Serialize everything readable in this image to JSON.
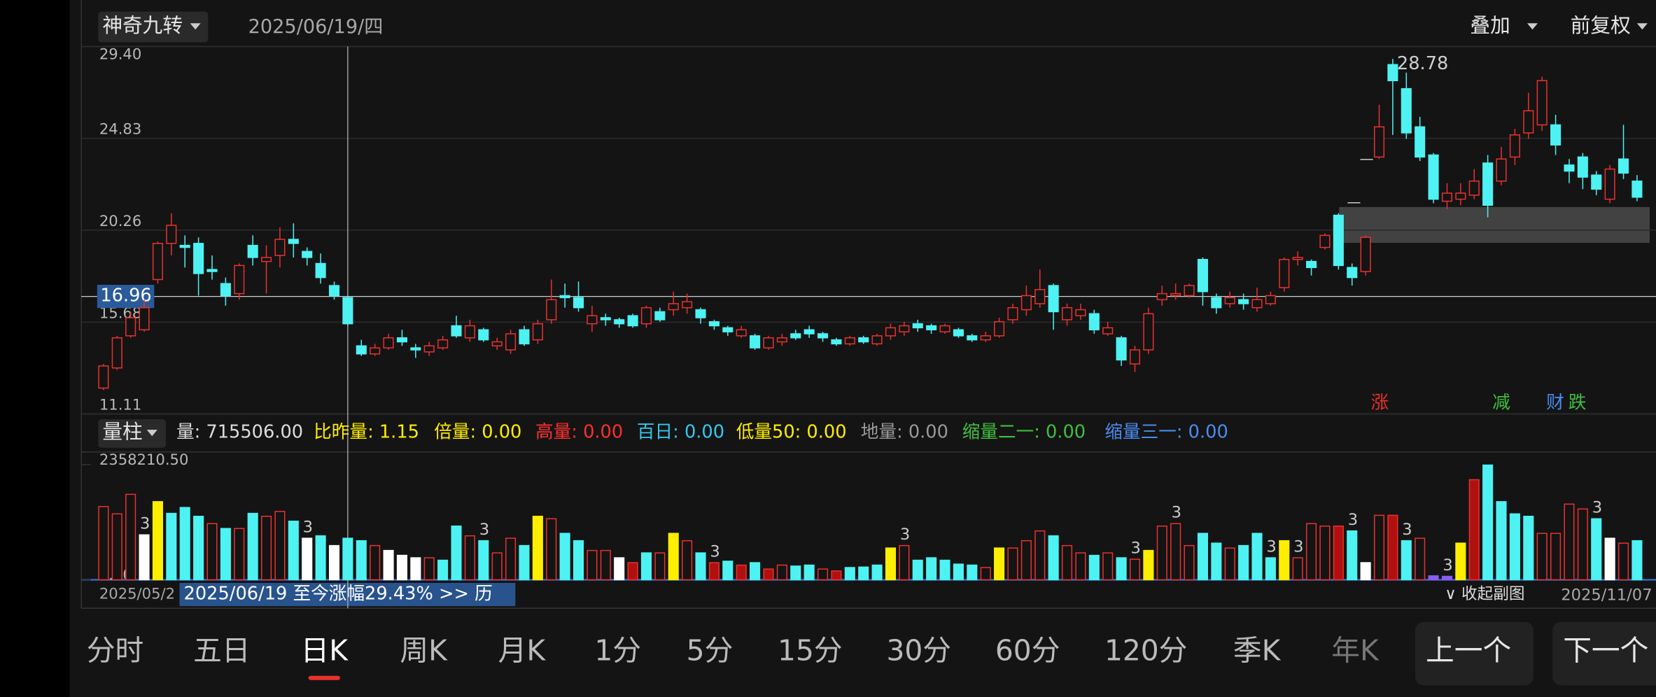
{
  "top_bar": {
    "indicator": "神奇九转",
    "date": "2025/06/19/四",
    "overlay": "叠加",
    "adjust": "前复权"
  },
  "chart_data": [
    {
      "type": "candlestick",
      "up_color": "#e8322f",
      "down_color": "#4ef2f2",
      "ylim": [
        11.11,
        29.4
      ],
      "yticks": [
        {
          "value": 29.4,
          "label": "29.40"
        },
        24.83,
        20.26,
        15.68,
        11.11
      ],
      "grid": true,
      "crosshair": 16.96,
      "open": [
        12.4,
        13.4,
        15.0,
        15.3,
        17.8,
        19.6,
        19.5,
        19.6,
        18.3,
        17.6,
        17.1,
        19.5,
        18.7,
        19.0,
        19.8,
        19.2,
        18.6,
        17.5,
        16.9,
        14.5,
        14.1,
        14.4,
        14.9,
        14.4,
        14.2,
        14.4,
        15.5,
        14.9,
        15.3,
        14.5,
        14.3,
        15.3,
        14.8,
        15.8,
        17.0,
        16.9,
        15.6,
        15.9,
        15.8,
        16.0,
        15.6,
        16.2,
        16.3,
        16.4,
        16.3,
        15.7,
        15.4,
        15.0,
        15.0,
        14.4,
        14.7,
        15.1,
        15.3,
        15.1,
        14.8,
        14.6,
        14.9,
        14.6,
        15.0,
        15.2,
        15.6,
        15.5,
        15.2,
        15.3,
        15.0,
        14.8,
        15.0,
        15.8,
        16.3,
        16.6,
        17.5,
        15.8,
        16.0,
        16.1,
        15.1,
        14.9,
        13.6,
        14.3,
        16.8,
        17.0,
        17.0,
        18.8,
        16.9,
        16.6,
        16.8,
        16.4,
        16.6,
        17.4,
        18.8,
        18.7,
        19.4,
        21.0,
        18.4,
        18.2,
        23.9,
        28.5,
        27.3,
        25.4,
        24.0,
        21.7,
        21.8,
        22.0,
        23.6,
        22.7,
        23.9,
        25.1,
        25.5,
        25.5,
        23.5,
        23.9,
        23.0,
        21.8,
        23.8,
        22.7
      ],
      "high": [
        13.6,
        15.0,
        16.2,
        16.8,
        19.7,
        21.1,
        20.0,
        19.9,
        19.0,
        17.9,
        18.6,
        20.0,
        19.5,
        20.4,
        20.6,
        19.4,
        19.1,
        17.7,
        16.9,
        14.8,
        14.6,
        15.1,
        15.3,
        14.6,
        14.7,
        15.0,
        16.0,
        15.8,
        15.4,
        14.9,
        15.3,
        15.5,
        15.8,
        17.8,
        17.6,
        17.7,
        16.5,
        16.1,
        15.9,
        16.1,
        16.5,
        16.4,
        17.2,
        17.1,
        16.4,
        15.8,
        15.5,
        15.5,
        15.1,
        15.0,
        15.1,
        15.3,
        15.5,
        15.2,
        14.9,
        15.0,
        15.0,
        15.1,
        15.6,
        15.7,
        15.8,
        15.6,
        15.6,
        15.4,
        15.1,
        15.2,
        15.9,
        16.6,
        17.5,
        18.3,
        17.6,
        16.6,
        16.6,
        16.3,
        15.7,
        15.0,
        14.5,
        16.4,
        17.5,
        17.6,
        17.6,
        18.9,
        17.1,
        17.2,
        17.1,
        17.4,
        17.2,
        18.9,
        19.2,
        18.8,
        20.1,
        21.1,
        18.6,
        20.0,
        26.5,
        28.78,
        28.1,
        25.9,
        24.1,
        22.6,
        22.6,
        23.3,
        24.0,
        24.4,
        25.3,
        27.1,
        27.9,
        26.0,
        23.8,
        24.1,
        23.2,
        23.5,
        25.5,
        23.0
      ],
      "low": [
        12.3,
        13.3,
        14.9,
        15.2,
        17.6,
        19.0,
        18.4,
        17.0,
        17.8,
        16.5,
        16.8,
        18.5,
        17.1,
        18.4,
        18.9,
        18.5,
        17.6,
        16.8,
        15.5,
        14.0,
        14.0,
        14.3,
        14.5,
        13.9,
        14.0,
        14.3,
        14.9,
        14.7,
        14.7,
        14.3,
        14.1,
        14.5,
        14.6,
        15.6,
        16.4,
        16.2,
        15.2,
        15.5,
        15.4,
        15.4,
        15.4,
        15.7,
        16.0,
        16.1,
        15.6,
        15.3,
        15.0,
        14.9,
        14.3,
        14.3,
        14.5,
        14.8,
        14.9,
        14.7,
        14.5,
        14.5,
        14.6,
        14.5,
        14.8,
        15.0,
        15.2,
        15.1,
        15.1,
        14.9,
        14.7,
        14.7,
        14.9,
        15.6,
        16.0,
        16.4,
        15.3,
        15.5,
        15.8,
        15.1,
        15.0,
        13.5,
        13.2,
        14.1,
        16.5,
        16.8,
        16.9,
        16.5,
        16.1,
        16.4,
        16.3,
        16.2,
        16.5,
        17.2,
        18.5,
        18.0,
        19.3,
        18.3,
        17.5,
        18.0,
        23.8,
        25.0,
        24.8,
        23.7,
        21.6,
        21.3,
        21.5,
        21.8,
        20.9,
        22.5,
        23.5,
        24.8,
        25.2,
        24.0,
        22.6,
        22.3,
        22.0,
        21.6,
        22.8,
        21.7
      ],
      "close": [
        13.5,
        14.9,
        15.9,
        16.4,
        19.6,
        20.5,
        19.4,
        18.1,
        18.2,
        17.0,
        18.5,
        18.9,
        18.9,
        19.8,
        19.6,
        18.9,
        17.9,
        17.0,
        15.6,
        14.1,
        14.4,
        14.9,
        14.7,
        14.3,
        14.5,
        14.8,
        15.0,
        15.5,
        14.8,
        14.7,
        15.1,
        14.6,
        15.6,
        16.8,
        16.9,
        16.4,
        16.0,
        15.8,
        15.6,
        15.5,
        16.4,
        15.8,
        16.6,
        16.7,
        15.9,
        15.5,
        15.2,
        15.3,
        14.4,
        14.9,
        14.9,
        14.9,
        15.1,
        14.9,
        14.6,
        14.9,
        14.7,
        15.0,
        15.4,
        15.5,
        15.4,
        15.3,
        15.5,
        15.0,
        14.8,
        15.0,
        15.7,
        16.4,
        17.0,
        17.3,
        16.2,
        16.4,
        16.3,
        15.3,
        15.4,
        13.8,
        14.3,
        16.1,
        17.1,
        17.1,
        17.5,
        17.2,
        16.4,
        16.9,
        16.6,
        16.8,
        17.0,
        18.8,
        18.9,
        18.4,
        20.0,
        18.5,
        17.9,
        19.9,
        25.4,
        27.7,
        25.1,
        23.9,
        21.8,
        22.1,
        22.1,
        22.7,
        21.5,
        23.8,
        25.0,
        26.2,
        27.7,
        24.5,
        23.2,
        22.9,
        22.3,
        23.3,
        23.1,
        21.9
      ],
      "events": [
        {
          "text": "涨",
          "color": "#e8322f"
        },
        {
          "text": "减",
          "color": "#3fbf3f"
        },
        {
          "text": "财",
          "color": "#4a8cf0"
        },
        {
          "text": "跌",
          "color": "#3fbf3f"
        }
      ]
    },
    {
      "type": "bar",
      "name": "量柱",
      "hollow_color": "#e8322f",
      "ylim": [
        0,
        2358210.5
      ],
      "yticks": [
        {
          "value": 2358210.5,
          "label": "2358210.50"
        },
        {
          "value": 0,
          "label": "0.00"
        }
      ],
      "stats": [
        {
          "text": "量: 715506.00",
          "color": "#dddddd"
        },
        {
          "text": "比昨量: 1.15",
          "color": "#ffee00"
        },
        {
          "text": "倍量: 0.00",
          "color": "#ffee00"
        },
        {
          "text": "高量: 0.00",
          "color": "#ff3030"
        },
        {
          "text": "百日: 0.00",
          "color": "#33c8f0"
        },
        {
          "text": "低量50: 0.00",
          "color": "#ffee00"
        },
        {
          "text": "地量: 0.00",
          "color": "#999999"
        },
        {
          "text": "缩量二一: 0.00",
          "color": "#3fbf3f"
        },
        {
          "text": "缩量三一: 0.00",
          "color": "#4a8cf0"
        }
      ],
      "values": [
        1500000,
        1350000,
        1750000,
        920000,
        1600000,
        1360000,
        1480000,
        1300000,
        1150000,
        1050000,
        1050000,
        1360000,
        1300000,
        1400000,
        1200000,
        850000,
        900000,
        700000,
        850000,
        800000,
        700000,
        600000,
        500000,
        450000,
        450000,
        400000,
        1100000,
        900000,
        800000,
        550000,
        850000,
        700000,
        1300000,
        1250000,
        950000,
        800000,
        600000,
        600000,
        450000,
        350000,
        550000,
        550000,
        950000,
        800000,
        550000,
        350000,
        380000,
        300000,
        350000,
        220000,
        300000,
        280000,
        300000,
        220000,
        180000,
        250000,
        260000,
        300000,
        650000,
        700000,
        400000,
        450000,
        400000,
        320000,
        300000,
        250000,
        650000,
        650000,
        800000,
        1000000,
        900000,
        700000,
        550000,
        500000,
        550000,
        450000,
        420000,
        600000,
        1100000,
        1150000,
        700000,
        950000,
        750000,
        650000,
        700000,
        950000,
        450000,
        800000,
        450000,
        1150000,
        1100000,
        1100000,
        1000000,
        350000,
        1320000,
        1320000,
        800000,
        850000,
        80000,
        70000,
        750000,
        2050000,
        2350000,
        1600000,
        1350000,
        1300000,
        950000,
        950000,
        1550000,
        1450000,
        1250000,
        850000,
        750000,
        800000
      ],
      "colors": [
        "#e8322f",
        "#e8322f",
        "#e8322f",
        "#ffffff",
        "#ffee00",
        "#4ef2f2",
        "#4ef2f2",
        "#4ef2f2",
        "#e8322f",
        "#4ef2f2",
        "#e8322f",
        "#4ef2f2",
        "#e8322f",
        "#e8322f",
        "#4ef2f2",
        "#ffffff",
        "#4ef2f2",
        "#ffffff",
        "#4ef2f2",
        "#4ef2f2",
        "#e8322f",
        "#ffffff",
        "#ffffff",
        "#ffffff",
        "#e8322f",
        "#4ef2f2",
        "#4ef2f2",
        "#e8322f",
        "#4ef2f2",
        "#e8322f",
        "#e8322f",
        "#4ef2f2",
        "#ffee00",
        "#e8322f",
        "#4ef2f2",
        "#4ef2f2",
        "#e8322f",
        "#e8322f",
        "#ffffff",
        "#b01010",
        "#4ef2f2",
        "#e8322f",
        "#ffee00",
        "#e8322f",
        "#4ef2f2",
        "#b01010",
        "#4ef2f2",
        "#b01010",
        "#4ef2f2",
        "#b01010",
        "#e8322f",
        "#4ef2f2",
        "#4ef2f2",
        "#e8322f",
        "#b01010",
        "#4ef2f2",
        "#4ef2f2",
        "#4ef2f2",
        "#ffee00",
        "#e8322f",
        "#4ef2f2",
        "#4ef2f2",
        "#4ef2f2",
        "#4ef2f2",
        "#4ef2f2",
        "#e8322f",
        "#ffee00",
        "#e8322f",
        "#e8322f",
        "#e8322f",
        "#4ef2f2",
        "#e8322f",
        "#e8322f",
        "#4ef2f2",
        "#e8322f",
        "#4ef2f2",
        "#e8322f",
        "#ffee00",
        "#e8322f",
        "#e8322f",
        "#e8322f",
        "#4ef2f2",
        "#4ef2f2",
        "#e8322f",
        "#4ef2f2",
        "#4ef2f2",
        "#4ef2f2",
        "#ffee00",
        "#e8322f",
        "#e8322f",
        "#e8322f",
        "#b01010",
        "#4ef2f2",
        "#ffffff",
        "#e8322f",
        "#b01010",
        "#4ef2f2",
        "#e8322f",
        "#8a5cf0",
        "#8a5cf0",
        "#ffee00",
        "#b01010",
        "#4ef2f2",
        "#4ef2f2",
        "#4ef2f2",
        "#4ef2f2",
        "#e8322f",
        "#e8322f",
        "#e8322f",
        "#e8322f",
        "#4ef2f2",
        "#ffffff",
        "#e8322f",
        "#4ef2f2"
      ],
      "labels": [
        null,
        null,
        null,
        "3",
        null,
        null,
        null,
        null,
        null,
        null,
        null,
        null,
        null,
        null,
        null,
        "3",
        null,
        null,
        null,
        null,
        null,
        null,
        null,
        null,
        null,
        null,
        null,
        null,
        "3",
        null,
        null,
        null,
        null,
        null,
        null,
        null,
        null,
        null,
        null,
        null,
        null,
        null,
        null,
        null,
        null,
        "3",
        null,
        null,
        null,
        null,
        null,
        null,
        null,
        null,
        null,
        null,
        null,
        null,
        null,
        "3",
        null,
        null,
        null,
        null,
        null,
        null,
        null,
        null,
        null,
        null,
        null,
        null,
        null,
        null,
        null,
        null,
        "3",
        null,
        null,
        "3",
        null,
        null,
        null,
        null,
        null,
        null,
        "3",
        null,
        "3",
        null,
        null,
        null,
        "3",
        null,
        null,
        null,
        "3",
        null,
        null,
        "3",
        null,
        null,
        null,
        null,
        null,
        null,
        null,
        null,
        null,
        null,
        "3",
        null,
        null,
        null
      ]
    }
  ],
  "dates": {
    "start": "2025/05/2",
    "end": "2025/11/07"
  },
  "tooltip": "2025/06/19 至今涨幅29.43%  >> 历",
  "collapse": "∨ 收起副图",
  "tabs": [
    "分时",
    "五日",
    "日K",
    "周K",
    "月K",
    "1分",
    "5分",
    "15分",
    "30分",
    "60分",
    "120分",
    "季K",
    "年K"
  ],
  "selected_tab": "日K",
  "buttons": [
    "上一个",
    "下一个"
  ]
}
